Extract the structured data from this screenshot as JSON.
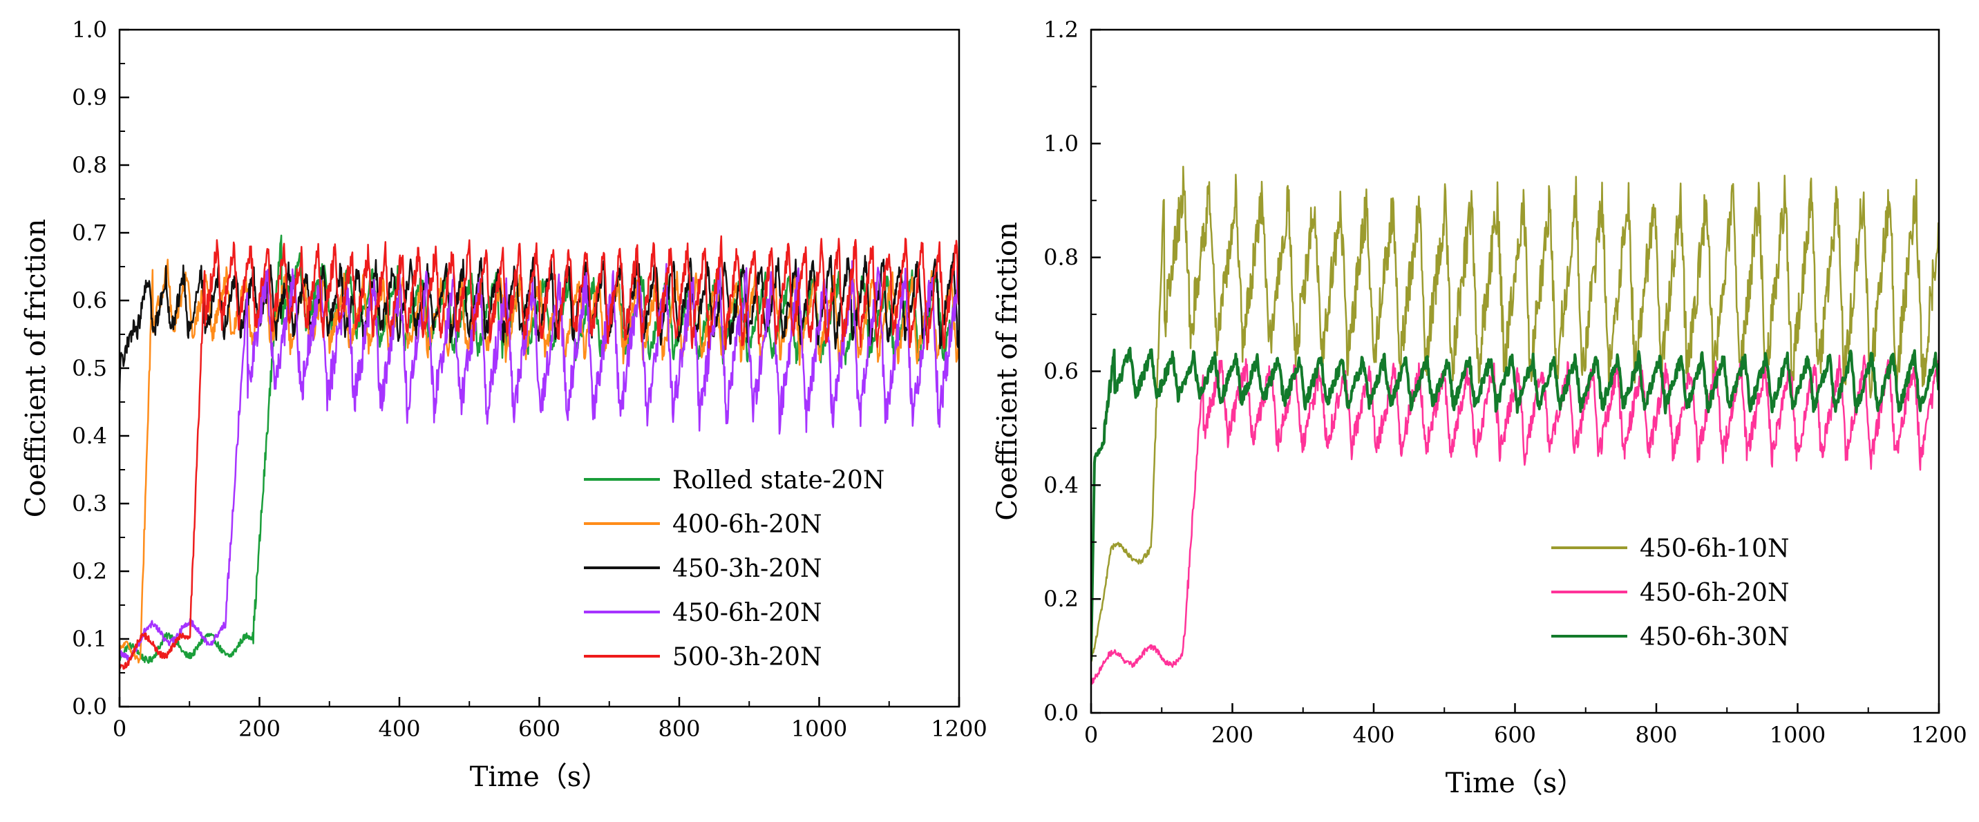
{
  "chart_data": [
    {
      "type": "line",
      "xlabel": "Time（s）",
      "ylabel": "Coefficient of friction",
      "xlim": [
        0,
        1200
      ],
      "ylim": [
        0,
        1.0
      ],
      "xticks": [
        0,
        200,
        400,
        600,
        800,
        1000,
        1200
      ],
      "yticks": [
        0.0,
        0.1,
        0.2,
        0.3,
        0.4,
        0.5,
        0.6,
        0.7,
        0.8,
        0.9,
        1.0
      ],
      "ytick_labels": [
        "0.0",
        "0.1",
        "0.2",
        "0.3",
        "0.4",
        "0.5",
        "0.6",
        "0.7",
        "0.8",
        "0.9",
        "1.0"
      ],
      "grid": false,
      "legend_position": "lower-right",
      "series": [
        {
          "name": "Rolled state-20N",
          "color": "#1a9e3a",
          "width": 2.5,
          "start_value": 0.07,
          "run_in_end": 190,
          "low_plateau": 0.09,
          "steady_mean": 0.575,
          "steady_amplitude": 0.05,
          "period": 35,
          "peak_early": 0.72
        },
        {
          "name": "400-6h-20N",
          "color": "#ff8c1a",
          "width": 2.5,
          "start_value": 0.07,
          "run_in_end": 30,
          "low_plateau": 0.08,
          "steady_mean": 0.575,
          "steady_amplitude": 0.05,
          "period": 28,
          "peak_early": 0.67
        },
        {
          "name": "450-3h-20N",
          "color": "#111111",
          "width": 2.5,
          "start_value": 0.45,
          "run_in_end": 5,
          "low_plateau": 0.51,
          "steady_mean": 0.6,
          "steady_amplitude": 0.05,
          "period": 25,
          "peak_early": 0.57
        },
        {
          "name": "450-6h-20N",
          "color": "#a633ff",
          "width": 2.5,
          "start_value": 0.08,
          "run_in_end": 150,
          "low_plateau": 0.11,
          "steady_mean": 0.53,
          "steady_amplitude": 0.09,
          "period": 38,
          "peak_early": 0.62
        },
        {
          "name": "500-3h-20N",
          "color": "#ee1c1c",
          "width": 2.5,
          "start_value": 0.07,
          "run_in_end": 100,
          "low_plateau": 0.09,
          "steady_mean": 0.61,
          "steady_amplitude": 0.06,
          "period": 24,
          "peak_early": 0.66
        }
      ]
    },
    {
      "type": "line",
      "xlabel": "Time（s）",
      "ylabel": "Coefficient of friction",
      "xlim": [
        0,
        1200
      ],
      "ylim": [
        0,
        1.2
      ],
      "xticks": [
        0,
        200,
        400,
        600,
        800,
        1000,
        1200
      ],
      "yticks": [
        0.0,
        0.2,
        0.4,
        0.6,
        0.8,
        1.0,
        1.2
      ],
      "ytick_labels": [
        "0.0",
        "0.2",
        "0.4",
        "0.6",
        "0.8",
        "1.0",
        "1.2"
      ],
      "grid": false,
      "legend_position": "lower-right",
      "series": [
        {
          "name": "450-6h-10N",
          "color": "#9b9b2e",
          "width": 2.5,
          "start_value": 0.1,
          "run_in_end": 85,
          "low_plateau": 0.28,
          "steady_mean": 0.75,
          "steady_amplitude": 0.14,
          "period": 37,
          "peak_early": 0.93
        },
        {
          "name": "450-6h-20N",
          "color": "#ff3399",
          "width": 2.5,
          "start_value": 0.07,
          "run_in_end": 130,
          "low_plateau": 0.1,
          "steady_mean": 0.53,
          "steady_amplitude": 0.07,
          "period": 35,
          "peak_early": 0.6
        },
        {
          "name": "450-6h-30N",
          "color": "#137a2b",
          "width": 4,
          "start_value": 0.1,
          "run_in_end": 15,
          "low_plateau": 0.45,
          "steady_mean": 0.58,
          "steady_amplitude": 0.04,
          "period": 30,
          "peak_early": 0.64
        }
      ]
    }
  ]
}
